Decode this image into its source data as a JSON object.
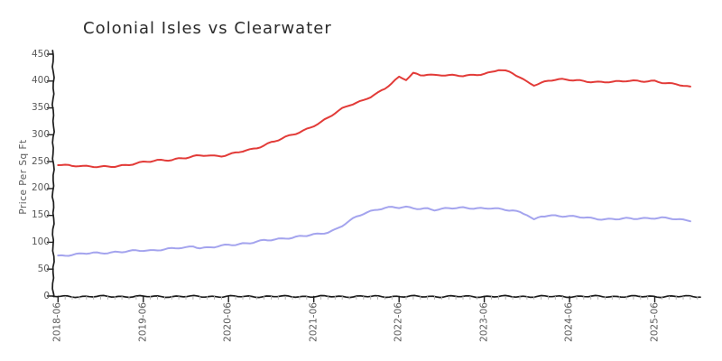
{
  "chart_data": {
    "type": "line",
    "title": "Colonial Isles vs Clearwater",
    "xlabel": "",
    "ylabel": "Price Per Sq Ft",
    "x_start": "2018-06",
    "x_end": "2025-11",
    "x_frequency": "monthly",
    "x_tick_labels": [
      "2018-06",
      "2019-06",
      "2020-06",
      "2021-06",
      "2022-06",
      "2023-06",
      "2024-06",
      "2025-06"
    ],
    "y_ticks": [
      0,
      50,
      100,
      150,
      200,
      250,
      300,
      350,
      400,
      450
    ],
    "ylim": [
      0,
      450
    ],
    "grid": false,
    "legend_position": "none",
    "style": "hand-drawn-xkcd",
    "series": [
      {
        "name": "Colonial Isles",
        "color": "#e23b38",
        "values": [
          244,
          243,
          242,
          243,
          242,
          241,
          240,
          240,
          241,
          243,
          245,
          247,
          249,
          250,
          252,
          253,
          254,
          256,
          257,
          259,
          261,
          262,
          261,
          261,
          263,
          266,
          269,
          272,
          276,
          281,
          286,
          290,
          295,
          300,
          305,
          311,
          317,
          323,
          331,
          340,
          349,
          356,
          360,
          364,
          370,
          377,
          386,
          397,
          408,
          403,
          414,
          410,
          412,
          411,
          412,
          411,
          410,
          409,
          410,
          412,
          414,
          417,
          421,
          418,
          414,
          407,
          399,
          393,
          396,
          400,
          402,
          403,
          403,
          402,
          400,
          398,
          397,
          398,
          399,
          400,
          401,
          400,
          399,
          399,
          400,
          398,
          396,
          394,
          391,
          388
        ]
      },
      {
        "name": "Clearwater",
        "color": "#a4a4ee",
        "values": [
          75,
          76,
          77,
          78,
          79,
          80,
          80,
          81,
          82,
          82,
          83,
          84,
          85,
          85,
          86,
          87,
          88,
          89,
          90,
          93,
          90,
          90,
          91,
          93,
          95,
          96,
          98,
          99,
          101,
          103,
          104,
          106,
          108,
          109,
          111,
          112,
          114,
          116,
          119,
          124,
          131,
          139,
          147,
          153,
          158,
          162,
          164,
          165,
          164,
          165,
          164,
          163,
          163,
          160,
          161,
          163,
          164,
          165,
          164,
          163,
          162,
          163,
          162,
          161,
          160,
          156,
          151,
          141,
          148,
          150,
          150,
          149,
          148,
          147,
          146,
          145,
          144,
          143,
          143,
          143,
          144,
          144,
          145,
          145,
          145,
          145,
          144,
          143,
          142,
          141
        ]
      }
    ]
  }
}
